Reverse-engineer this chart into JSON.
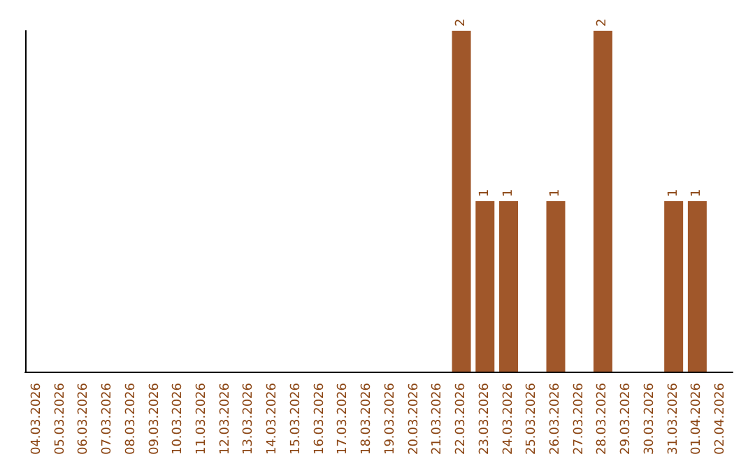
{
  "chart_data": {
    "type": "bar",
    "categories": [
      "04.03.2026",
      "05.03.2026",
      "06.03.2026",
      "07.03.2026",
      "08.03.2026",
      "09.03.2026",
      "10.03.2026",
      "11.03.2026",
      "12.03.2026",
      "13.03.2026",
      "14.03.2026",
      "15.03.2026",
      "16.03.2026",
      "17.03.2026",
      "18.03.2026",
      "19.03.2026",
      "20.03.2026",
      "21.03.2026",
      "22.03.2026",
      "23.03.2026",
      "24.03.2026",
      "25.03.2026",
      "26.03.2026",
      "27.03.2026",
      "28.03.2026",
      "29.03.2026",
      "30.03.2026",
      "31.03.2026",
      "01.04.2026",
      "02.04.2026"
    ],
    "values": [
      null,
      null,
      null,
      null,
      null,
      null,
      null,
      null,
      null,
      null,
      null,
      null,
      null,
      null,
      null,
      null,
      null,
      null,
      2,
      1,
      1,
      null,
      1,
      null,
      2,
      null,
      null,
      1,
      1,
      null
    ],
    "color": "#a0572a",
    "data_labels": true,
    "tick_labels": "x",
    "grid": false
  }
}
